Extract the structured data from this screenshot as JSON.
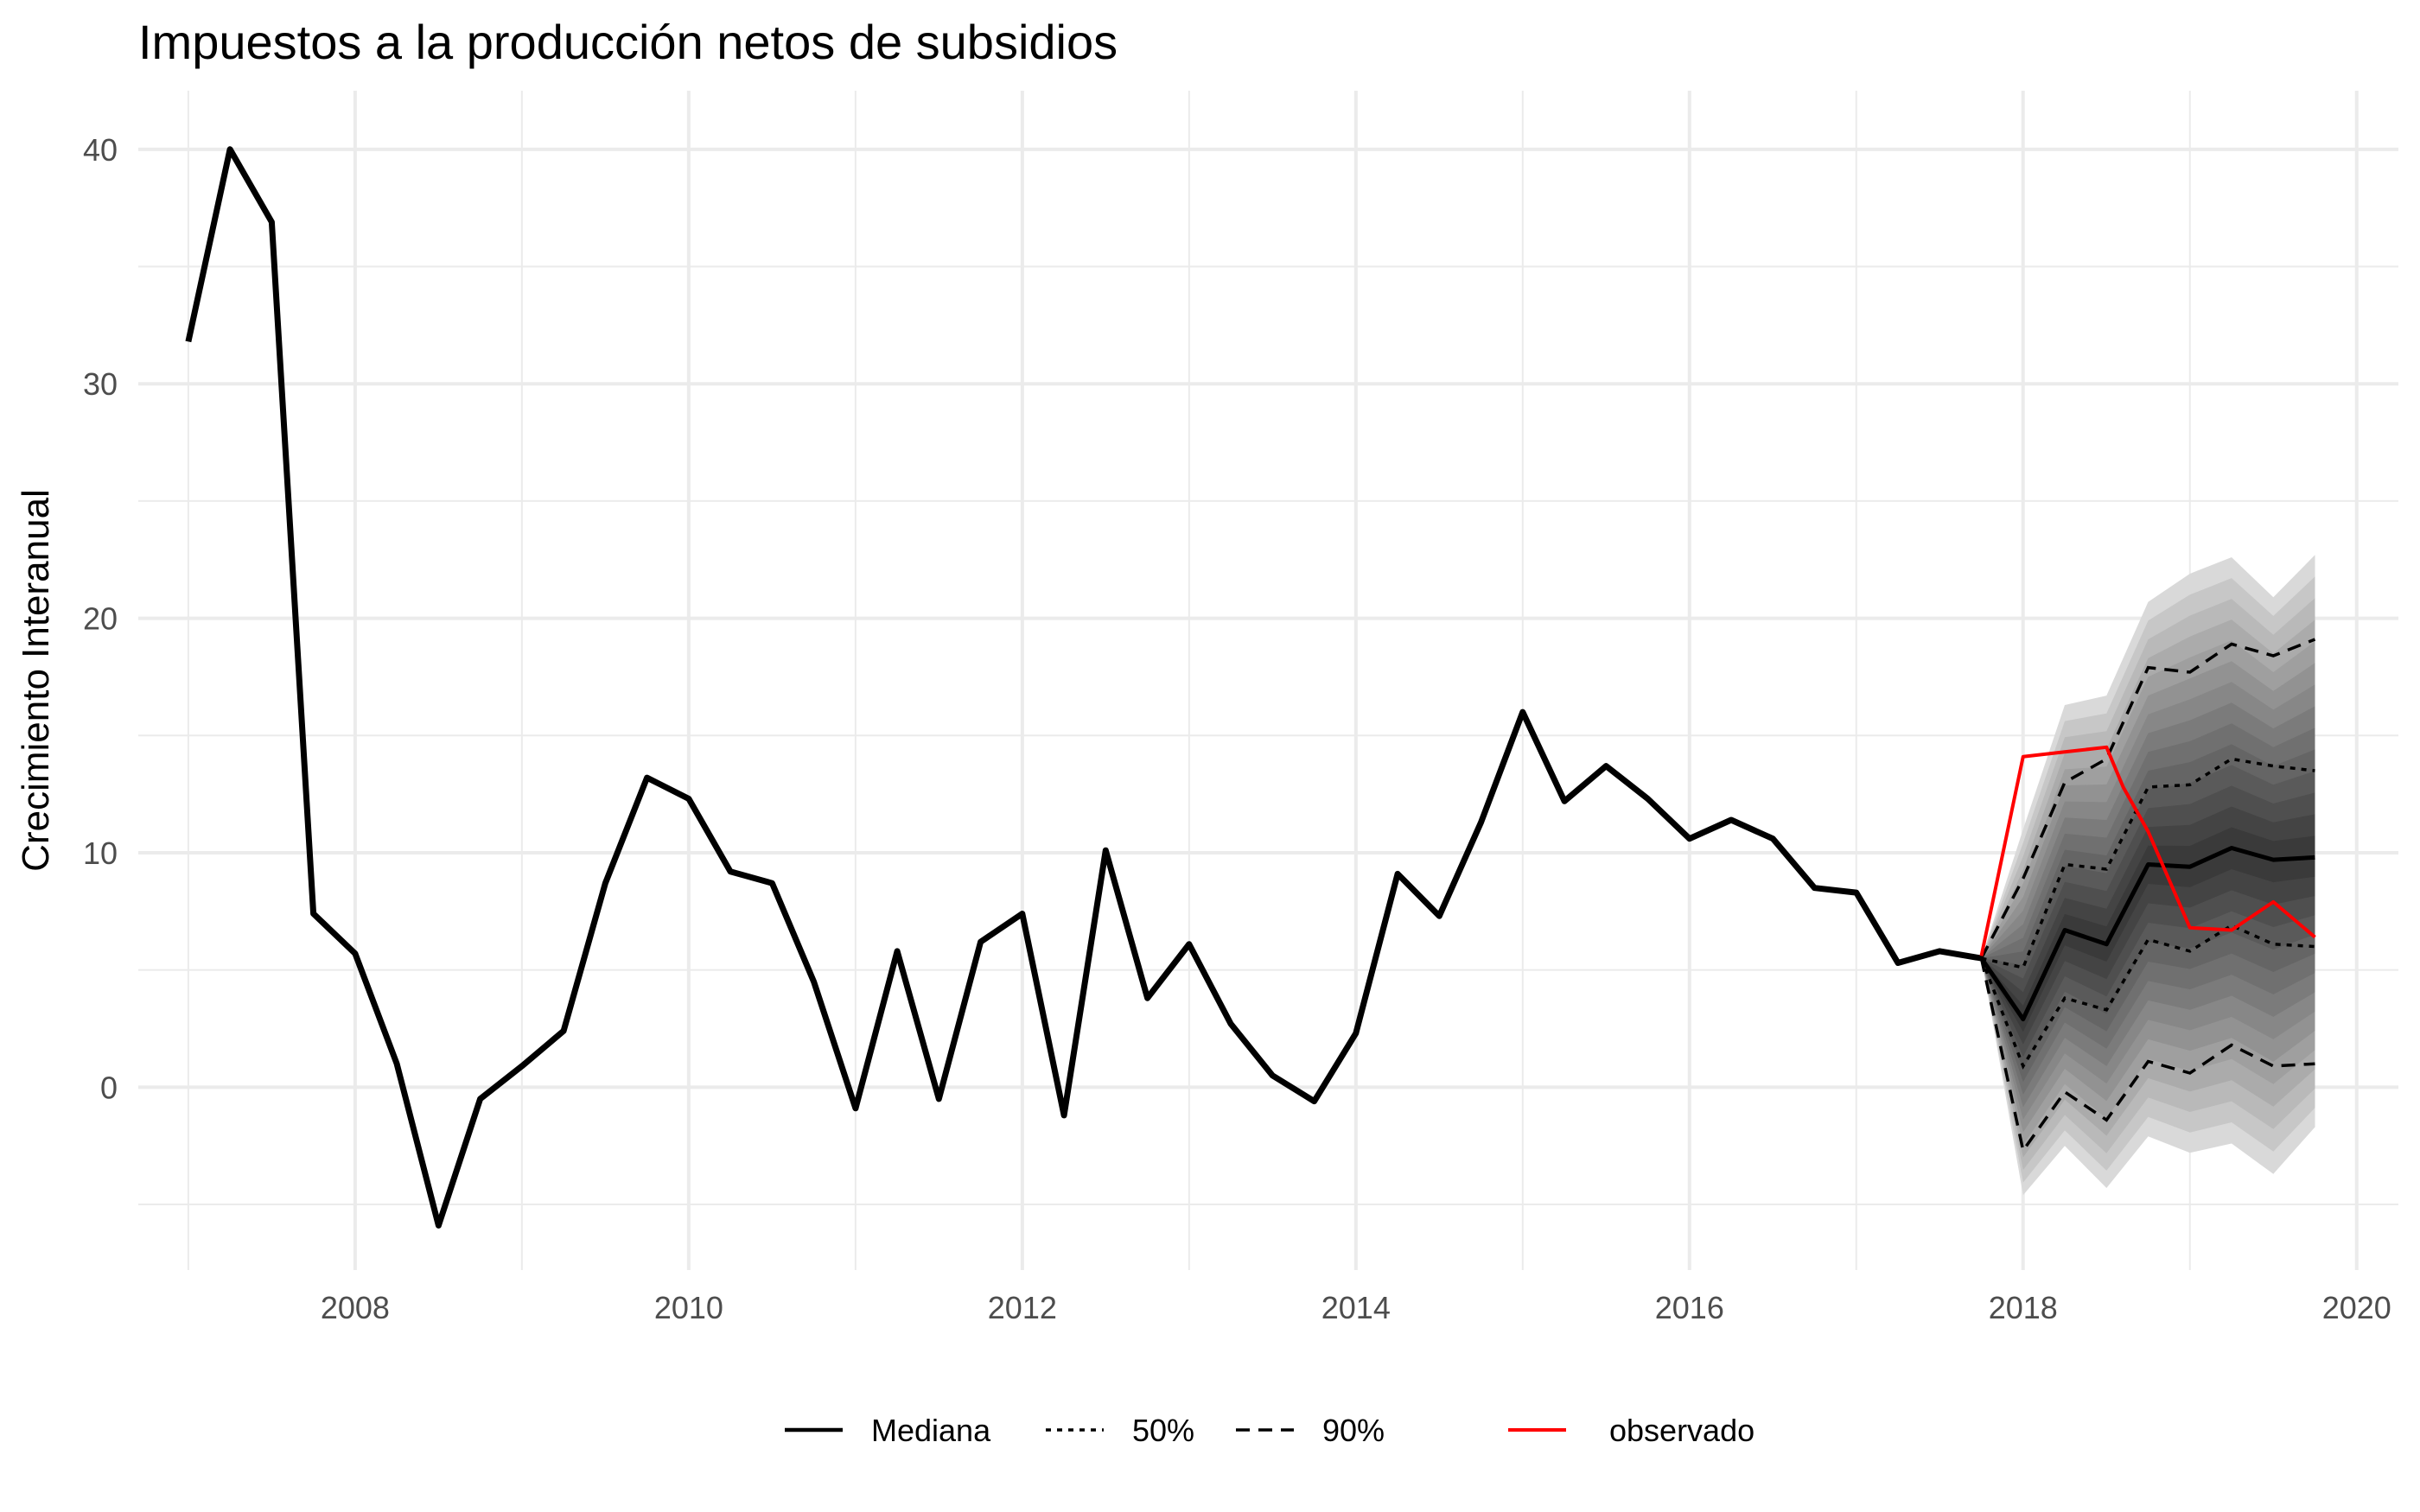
{
  "chart_data": {
    "type": "line",
    "title": "Impuestos a la producción netos de subsidios",
    "xlabel": "",
    "ylabel": "Crecimiento Interanual",
    "xlim": [
      2006.7,
      2020.25
    ],
    "ylim": [
      -7.8,
      42.5
    ],
    "x_ticks": [
      2008,
      2010,
      2012,
      2014,
      2016,
      2018,
      2020
    ],
    "y_ticks": [
      0,
      10,
      20,
      30,
      40
    ],
    "grid": true,
    "legend_position": "bottom",
    "legend": [
      {
        "label": "Mediana",
        "style": "solid"
      },
      {
        "label": "50%",
        "style": "dotted"
      },
      {
        "label": "90%",
        "style": "dashed"
      },
      {
        "label": "observado",
        "style": "solid-red"
      }
    ],
    "colors": {
      "history": "#000000",
      "observed": "#ff0000",
      "fan_outer": "#d9d9d9",
      "fan_inner": "#3a3a3a",
      "grid": "#ebebeb"
    },
    "history": {
      "x": [
        2007.0,
        2007.25,
        2007.5,
        2007.75,
        2008.0,
        2008.25,
        2008.5,
        2008.75,
        2009.0,
        2009.25,
        2009.5,
        2009.75,
        2010.0,
        2010.25,
        2010.5,
        2010.75,
        2011.0,
        2011.25,
        2011.5,
        2011.75,
        2012.0,
        2012.25,
        2012.5,
        2012.75,
        2013.0,
        2013.25,
        2013.5,
        2013.75,
        2014.0,
        2014.25,
        2014.5,
        2014.75,
        2015.0,
        2015.25,
        2015.5,
        2015.75,
        2016.0,
        2016.25,
        2016.5,
        2016.75,
        2017.0,
        2017.25,
        2017.5,
        2017.75
      ],
      "values": [
        31.8,
        40.0,
        36.9,
        7.4,
        5.7,
        1.0,
        -5.9,
        -0.5,
        0.9,
        2.4,
        8.7,
        13.2,
        12.3,
        9.2,
        8.7,
        4.5,
        -0.9,
        5.8,
        -0.5,
        6.2,
        7.4,
        -1.2,
        10.1,
        3.8,
        6.1,
        2.7,
        0.5,
        -0.6,
        2.3,
        9.1,
        7.3,
        11.3,
        16.0,
        12.2,
        13.7,
        12.3,
        10.6,
        11.4,
        10.6,
        8.5,
        8.3,
        5.3,
        5.8,
        5.5
      ]
    },
    "forecast": {
      "x": [
        2017.75,
        2018.0,
        2018.25,
        2018.5,
        2018.75,
        2019.0,
        2019.25,
        2019.5,
        2019.75
      ],
      "median": [
        5.5,
        2.9,
        6.7,
        6.1,
        9.5,
        9.4,
        10.2,
        9.7,
        9.8
      ],
      "p50_lower": [
        5.5,
        0.9,
        3.8,
        3.3,
        6.3,
        5.8,
        6.9,
        6.1,
        6.0
      ],
      "p50_upper": [
        5.5,
        5.1,
        9.5,
        9.3,
        12.8,
        12.9,
        14.0,
        13.7,
        13.5
      ],
      "p90_lower": [
        5.5,
        -2.7,
        -0.2,
        -1.4,
        1.1,
        0.6,
        1.8,
        0.9,
        1.0
      ],
      "p90_upper": [
        5.5,
        8.9,
        13.0,
        14.0,
        17.9,
        17.7,
        18.9,
        18.4,
        19.1
      ],
      "outer_lower": [
        5.5,
        -4.6,
        -2.5,
        -4.3,
        -2.1,
        -2.8,
        -2.4,
        -3.7,
        -1.7
      ],
      "outer_upper": [
        5.5,
        11.0,
        16.3,
        16.7,
        20.7,
        21.9,
        22.6,
        20.9,
        22.7
      ]
    },
    "observed": {
      "x": [
        2017.75,
        2018.0,
        2018.25,
        2018.5,
        2018.6,
        2018.75,
        2019.0,
        2019.25,
        2019.5,
        2019.75
      ],
      "values": [
        5.6,
        14.1,
        14.3,
        14.5,
        12.8,
        10.9,
        6.8,
        6.7,
        7.9,
        6.4
      ]
    }
  }
}
